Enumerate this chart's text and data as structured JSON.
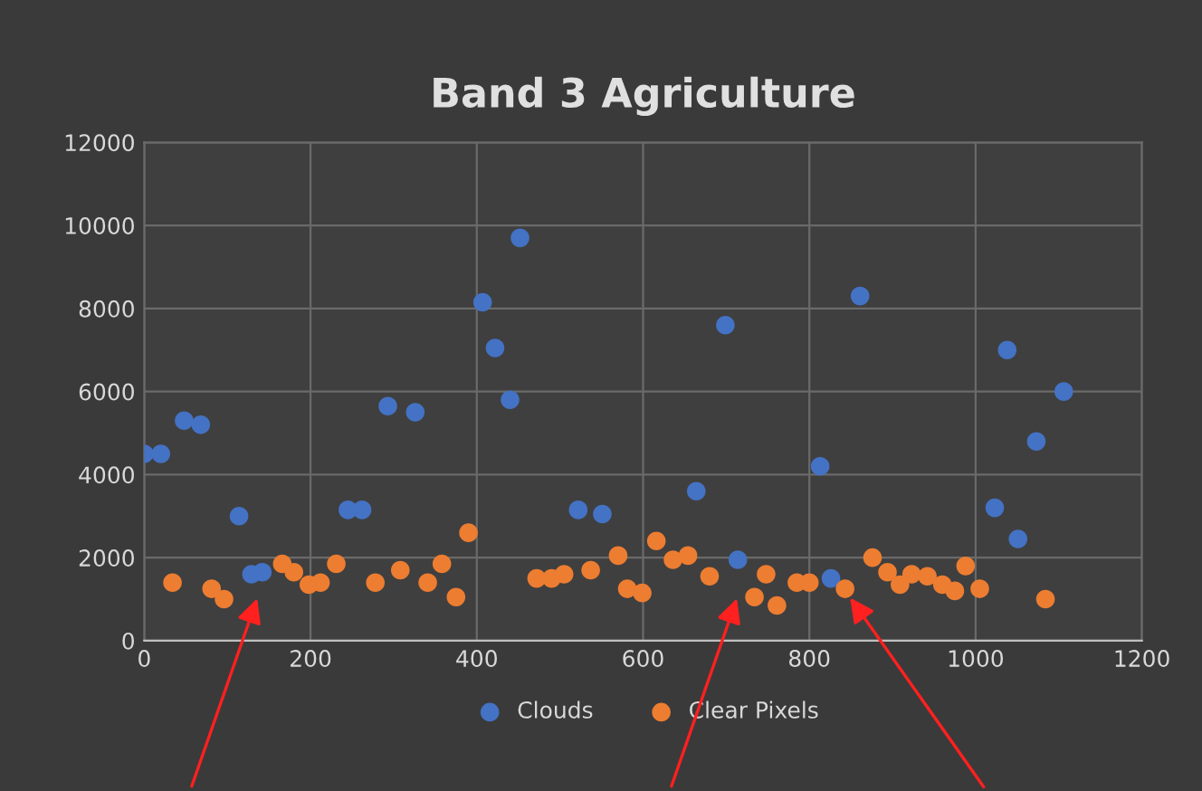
{
  "chart_data": {
    "type": "scatter",
    "title": "Band 3 Agriculture",
    "xlim": [
      0,
      1200
    ],
    "xticks": [
      0,
      200,
      400,
      600,
      800,
      1000,
      1200
    ],
    "ylim": [
      0,
      12000
    ],
    "yticks": [
      0,
      2000,
      4000,
      6000,
      8000,
      10000,
      12000
    ],
    "grid": true,
    "legend": "bottom",
    "marker": "circle",
    "series": [
      {
        "name": "Clouds",
        "color": "#4472c4",
        "x": [
          0,
          20,
          48,
          68,
          114,
          129,
          142,
          245,
          262,
          293,
          326,
          407,
          422,
          440,
          452,
          522,
          551,
          664,
          699,
          714,
          813,
          826,
          861,
          1023,
          1038,
          1051,
          1073,
          1106
        ],
        "values": [
          4500,
          4500,
          5300,
          5200,
          3000,
          1600,
          1650,
          3150,
          3150,
          5650,
          5500,
          8150,
          7050,
          5800,
          9700,
          3150,
          3050,
          3600,
          7600,
          1950,
          4200,
          1500,
          8300,
          3200,
          7000,
          2450,
          4800,
          6000
        ]
      },
      {
        "name": "Clear Pixels",
        "color": "#ed7d31",
        "x": [
          34,
          81,
          96,
          166,
          180,
          198,
          212,
          231,
          278,
          308,
          341,
          358,
          375,
          390,
          472,
          490,
          505,
          537,
          570,
          581,
          599,
          616,
          636,
          654,
          680,
          734,
          748,
          761,
          785,
          800,
          843,
          876,
          894,
          909,
          923,
          942,
          960,
          975,
          988,
          1005,
          1084
        ],
        "values": [
          1400,
          1250,
          1000,
          1850,
          1650,
          1350,
          1400,
          1850,
          1400,
          1700,
          1400,
          1850,
          1050,
          2600,
          1500,
          1500,
          1600,
          1700,
          2050,
          1250,
          1150,
          2400,
          1950,
          2050,
          1550,
          1050,
          1600,
          850,
          1400,
          1400,
          1250,
          2000,
          1650,
          1350,
          1600,
          1550,
          1350,
          1200,
          1800,
          1250,
          1000
        ]
      }
    ]
  }
}
